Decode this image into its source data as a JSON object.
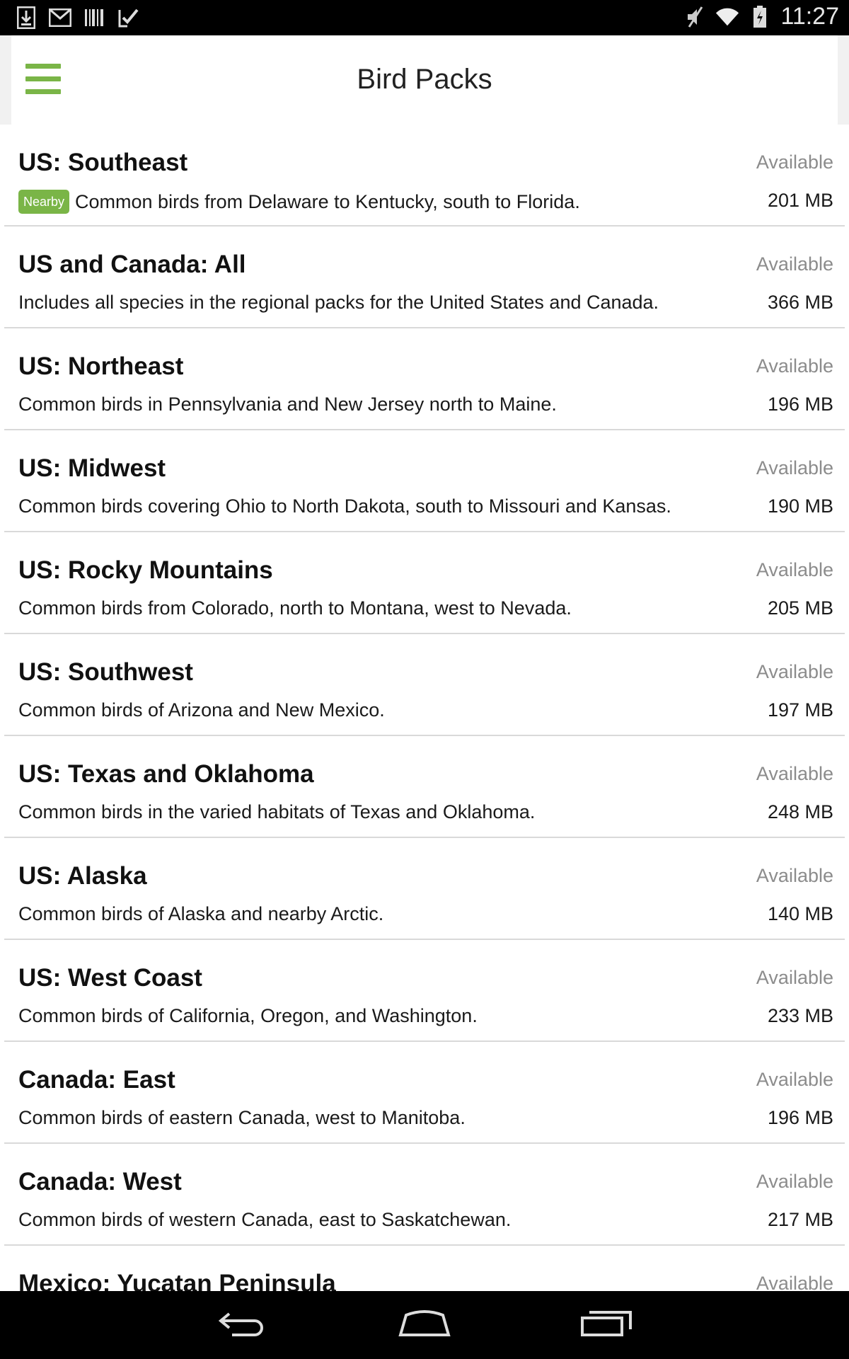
{
  "status_bar": {
    "time": "11:27",
    "icons": [
      "download-icon",
      "gmail-icon",
      "barcode-icon",
      "checkmark-icon",
      "muted-icon",
      "wifi-icon",
      "battery-icon"
    ]
  },
  "app_bar": {
    "title": "Bird Packs",
    "menu_icon": "hamburger-icon"
  },
  "colors": {
    "accent": "#7ab547",
    "status_text": "#8c8c8c"
  },
  "packs": [
    {
      "title": "US: Southeast",
      "status": "Available",
      "badge": "Nearby",
      "description": "Common birds from Delaware to Kentucky, south to Florida.",
      "size": "201 MB"
    },
    {
      "title": "US and Canada: All",
      "status": "Available",
      "badge": "",
      "description": "Includes all species in the regional packs for the United States and Canada.",
      "size": "366 MB"
    },
    {
      "title": "US: Northeast",
      "status": "Available",
      "badge": "",
      "description": "Common birds in Pennsylvania and New Jersey north to Maine.",
      "size": "196 MB"
    },
    {
      "title": "US: Midwest",
      "status": "Available",
      "badge": "",
      "description": "Common birds covering Ohio to North Dakota, south to Missouri and Kansas.",
      "size": "190 MB"
    },
    {
      "title": "US: Rocky Mountains",
      "status": "Available",
      "badge": "",
      "description": "Common birds from Colorado, north to Montana, west to Nevada.",
      "size": "205 MB"
    },
    {
      "title": "US: Southwest",
      "status": "Available",
      "badge": "",
      "description": "Common birds of Arizona and New Mexico.",
      "size": "197 MB"
    },
    {
      "title": "US: Texas and Oklahoma",
      "status": "Available",
      "badge": "",
      "description": "Common birds in the varied habitats of Texas and Oklahoma.",
      "size": "248 MB"
    },
    {
      "title": "US: Alaska",
      "status": "Available",
      "badge": "",
      "description": "Common birds of Alaska and nearby Arctic.",
      "size": "140 MB"
    },
    {
      "title": "US: West Coast",
      "status": "Available",
      "badge": "",
      "description": "Common birds of California, Oregon, and Washington.",
      "size": "233 MB"
    },
    {
      "title": "Canada: East",
      "status": "Available",
      "badge": "",
      "description": "Common birds of eastern Canada, west to Manitoba.",
      "size": "196 MB"
    },
    {
      "title": "Canada: West",
      "status": "Available",
      "badge": "",
      "description": "Common birds of western Canada, east to Saskatchewan.",
      "size": "217 MB"
    },
    {
      "title": "Mexico: Yucatan Peninsula",
      "status": "Available",
      "badge": "",
      "description": "",
      "size": ""
    }
  ],
  "nav_bar": {
    "icons": [
      "back-icon",
      "home-icon",
      "recents-icon"
    ]
  }
}
